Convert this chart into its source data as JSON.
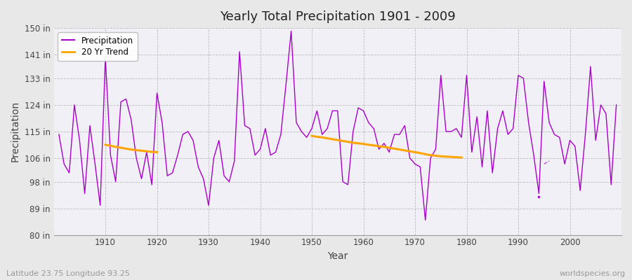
{
  "title": "Yearly Total Precipitation 1901 - 2009",
  "xlabel": "Year",
  "ylabel": "Precipitation",
  "subtitle": "Latitude 23.75 Longitude 93.25",
  "watermark": "worldspecies.org",
  "ylim": [
    80,
    150
  ],
  "yticks": [
    80,
    89,
    98,
    106,
    115,
    124,
    133,
    141,
    150
  ],
  "ytick_labels": [
    "80 in",
    "89 in",
    "98 in",
    "106 in",
    "115 in",
    "124 in",
    "133 in",
    "141 in",
    "150 in"
  ],
  "xlim": [
    1900,
    2010
  ],
  "xticks": [
    1910,
    1920,
    1930,
    1940,
    1950,
    1960,
    1970,
    1980,
    1990,
    2000
  ],
  "precip_color": "#AA00CC",
  "trend_color": "#FFA500",
  "fig_bg_color": "#E8E8E8",
  "plot_bg_color": "#F2F0F7",
  "grid_color": "#BBBBBB",
  "title_color": "#222222",
  "label_color": "#444444",
  "years": [
    1901,
    1902,
    1903,
    1904,
    1905,
    1906,
    1907,
    1908,
    1909,
    1910,
    1911,
    1912,
    1913,
    1914,
    1915,
    1916,
    1917,
    1918,
    1919,
    1920,
    1921,
    1922,
    1923,
    1924,
    1925,
    1926,
    1927,
    1928,
    1929,
    1930,
    1931,
    1932,
    1933,
    1934,
    1935,
    1936,
    1937,
    1938,
    1939,
    1940,
    1941,
    1942,
    1943,
    1944,
    1945,
    1946,
    1947,
    1948,
    1949,
    1950,
    1951,
    1952,
    1953,
    1954,
    1955,
    1956,
    1957,
    1958,
    1959,
    1960,
    1961,
    1962,
    1963,
    1964,
    1965,
    1966,
    1967,
    1968,
    1969,
    1970,
    1971,
    1972,
    1973,
    1974,
    1975,
    1976,
    1977,
    1978,
    1979,
    1980,
    1981,
    1982,
    1983,
    1984,
    1985,
    1986,
    1987,
    1988,
    1989,
    1990,
    1991,
    1992,
    1993,
    1994,
    1995,
    1996,
    1997,
    1998,
    1999,
    2000,
    2001,
    2002,
    2003,
    2004,
    2005,
    2006,
    2007,
    2008,
    2009
  ],
  "precip": [
    114,
    104,
    101,
    124,
    112,
    94,
    117,
    104,
    90,
    140,
    107,
    98,
    125,
    126,
    119,
    106,
    99,
    108,
    97,
    128,
    118,
    100,
    101,
    107,
    114,
    115,
    112,
    103,
    99,
    90,
    106,
    112,
    100,
    98,
    105,
    142,
    117,
    116,
    107,
    109,
    116,
    107,
    108,
    114,
    131,
    149,
    118,
    115,
    113,
    116,
    122,
    114,
    116,
    122,
    122,
    98,
    97,
    115,
    123,
    122,
    118,
    116,
    109,
    111,
    108,
    114,
    114,
    117,
    106,
    104,
    103,
    85,
    106,
    109,
    134,
    115,
    115,
    116,
    113,
    134,
    108,
    120,
    103,
    122,
    101,
    116,
    122,
    114,
    116,
    134,
    133,
    118,
    107,
    94,
    132,
    118,
    114,
    113,
    104,
    112,
    110,
    95,
    114,
    137,
    112,
    124,
    121,
    97,
    124
  ],
  "trend_seg1_years": [
    1910,
    1911,
    1912,
    1913,
    1914,
    1915,
    1916,
    1917,
    1918,
    1919,
    1920
  ],
  "trend_seg1_vals": [
    110.5,
    110.2,
    109.8,
    109.5,
    109.2,
    108.9,
    108.7,
    108.5,
    108.3,
    108.1,
    108.0
  ],
  "trend_seg2_years": [
    1950,
    1951,
    1952,
    1953,
    1954,
    1955,
    1956,
    1957,
    1958,
    1959,
    1960,
    1961,
    1962,
    1963,
    1964,
    1965,
    1966,
    1967,
    1968,
    1969,
    1970,
    1971,
    1972,
    1973,
    1974,
    1975,
    1976,
    1977,
    1978,
    1979
  ],
  "trend_seg2_vals": [
    113.5,
    113.2,
    113.0,
    112.7,
    112.4,
    112.1,
    111.8,
    111.5,
    111.2,
    111.0,
    110.8,
    110.5,
    110.3,
    110.0,
    109.8,
    109.5,
    109.2,
    108.9,
    108.6,
    108.3,
    108.0,
    107.7,
    107.3,
    107.0,
    106.8,
    106.6,
    106.5,
    106.4,
    106.3,
    106.2
  ],
  "isolated_dot_year": 1994,
  "isolated_dot_val": 93,
  "isolated_seg_years": [
    1995,
    1996
  ],
  "isolated_seg_vals": [
    104,
    105
  ]
}
